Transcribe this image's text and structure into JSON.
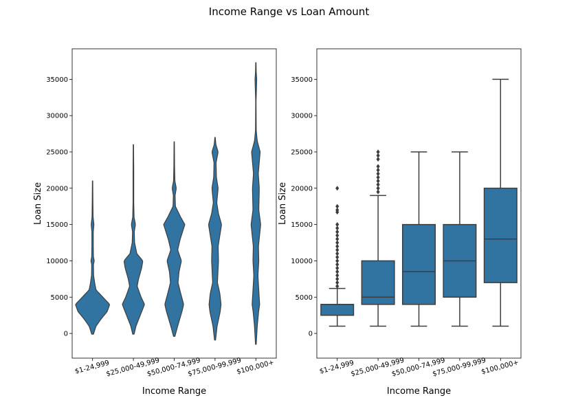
{
  "figure": {
    "title": "Income Range vs Loan Amount"
  },
  "colors": {
    "fill": "#3274a1",
    "edge": "#3d3d3d",
    "axis": "#000000"
  },
  "chart_data": [
    {
      "type": "violin",
      "xlabel": "Income Range",
      "ylabel": "Loan Size",
      "ylim": [
        -3400,
        39200
      ],
      "yticks": [
        0,
        5000,
        10000,
        15000,
        20000,
        25000,
        30000,
        35000
      ],
      "categories": [
        "$1-24,999",
        "$25,000-49,999",
        "$50,000-74,999",
        "$75,000-99,999",
        "$100,000+"
      ],
      "violins": [
        {
          "min": -100,
          "max": 21000,
          "profile": [
            [
              -100,
              0.05
            ],
            [
              1000,
              0.2
            ],
            [
              2000,
              0.5
            ],
            [
              3000,
              0.85
            ],
            [
              4000,
              1.0
            ],
            [
              5000,
              0.6
            ],
            [
              6000,
              0.2
            ],
            [
              7000,
              0.12
            ],
            [
              8000,
              0.06
            ],
            [
              9500,
              0.05
            ],
            [
              10000,
              0.1
            ],
            [
              10500,
              0.05
            ],
            [
              12000,
              0.04
            ],
            [
              14000,
              0.04
            ],
            [
              15000,
              0.08
            ],
            [
              16000,
              0.03
            ],
            [
              18000,
              0.02
            ],
            [
              21000,
              0.01
            ]
          ]
        },
        {
          "min": -100,
          "max": 26000,
          "profile": [
            [
              -100,
              0.04
            ],
            [
              1000,
              0.15
            ],
            [
              2500,
              0.4
            ],
            [
              4000,
              0.65
            ],
            [
              5000,
              0.45
            ],
            [
              6500,
              0.22
            ],
            [
              7500,
              0.3
            ],
            [
              9000,
              0.48
            ],
            [
              10000,
              0.55
            ],
            [
              11000,
              0.2
            ],
            [
              12500,
              0.07
            ],
            [
              14000,
              0.05
            ],
            [
              15000,
              0.12
            ],
            [
              16000,
              0.04
            ],
            [
              18000,
              0.02
            ],
            [
              22000,
              0.02
            ],
            [
              26000,
              0.01
            ]
          ]
        },
        {
          "min": -400,
          "max": 26400,
          "profile": [
            [
              -400,
              0.04
            ],
            [
              1000,
              0.2
            ],
            [
              3000,
              0.45
            ],
            [
              4000,
              0.55
            ],
            [
              5500,
              0.38
            ],
            [
              7000,
              0.22
            ],
            [
              8500,
              0.28
            ],
            [
              10000,
              0.42
            ],
            [
              11500,
              0.2
            ],
            [
              13000,
              0.35
            ],
            [
              15000,
              0.62
            ],
            [
              16000,
              0.38
            ],
            [
              17500,
              0.07
            ],
            [
              19000,
              0.05
            ],
            [
              20000,
              0.12
            ],
            [
              21000,
              0.04
            ],
            [
              23000,
              0.02
            ],
            [
              26400,
              0.01
            ]
          ]
        },
        {
          "min": -900,
          "max": 27000,
          "profile": [
            [
              -900,
              0.03
            ],
            [
              1000,
              0.12
            ],
            [
              3000,
              0.3
            ],
            [
              4000,
              0.35
            ],
            [
              5500,
              0.28
            ],
            [
              7000,
              0.14
            ],
            [
              10000,
              0.2
            ],
            [
              12000,
              0.18
            ],
            [
              15000,
              0.38
            ],
            [
              16500,
              0.2
            ],
            [
              18000,
              0.1
            ],
            [
              20000,
              0.18
            ],
            [
              21500,
              0.08
            ],
            [
              23500,
              0.06
            ],
            [
              25000,
              0.18
            ],
            [
              26000,
              0.05
            ],
            [
              27000,
              0.01
            ]
          ]
        },
        {
          "min": -1500,
          "max": 37300,
          "profile": [
            [
              -1500,
              0.02
            ],
            [
              1000,
              0.08
            ],
            [
              3000,
              0.16
            ],
            [
              4000,
              0.22
            ],
            [
              5500,
              0.18
            ],
            [
              8000,
              0.12
            ],
            [
              10000,
              0.17
            ],
            [
              12000,
              0.15
            ],
            [
              15000,
              0.28
            ],
            [
              17000,
              0.17
            ],
            [
              20000,
              0.2
            ],
            [
              22000,
              0.14
            ],
            [
              25000,
              0.25
            ],
            [
              26500,
              0.08
            ],
            [
              28000,
              0.02
            ],
            [
              32000,
              0.01
            ],
            [
              35000,
              0.05
            ],
            [
              36000,
              0.02
            ],
            [
              37300,
              0.01
            ]
          ]
        }
      ]
    },
    {
      "type": "box",
      "xlabel": "Income Range",
      "ylabel": "Loan Size",
      "ylim": [
        -3400,
        39200
      ],
      "yticks": [
        0,
        5000,
        10000,
        15000,
        20000,
        25000,
        30000,
        35000
      ],
      "categories": [
        "$1-24,999",
        "$25,000-49,999",
        "$50,000-74,999",
        "$75,000-99,999",
        "$100,000+"
      ],
      "boxes": [
        {
          "whisker_low": 1000,
          "q1": 2500,
          "median": 4000,
          "q3": 4000,
          "whisker_high": 6200,
          "outliers": [
            6500,
            7000,
            7500,
            8000,
            8500,
            9000,
            9500,
            10000,
            10500,
            11000,
            11500,
            12000,
            12500,
            13000,
            13500,
            14000,
            14500,
            15000,
            16700,
            17000,
            17500,
            20000
          ]
        },
        {
          "whisker_low": 1000,
          "q1": 4000,
          "median": 5000,
          "q3": 10000,
          "whisker_high": 19000,
          "outliers": [
            19500,
            20000,
            20500,
            21000,
            21500,
            22000,
            22500,
            23000,
            24000,
            24500,
            25000
          ]
        },
        {
          "whisker_low": 1000,
          "q1": 4000,
          "median": 8500,
          "q3": 15000,
          "whisker_high": 25000,
          "outliers": []
        },
        {
          "whisker_low": 1000,
          "q1": 5000,
          "median": 10000,
          "q3": 15000,
          "whisker_high": 25000,
          "outliers": []
        },
        {
          "whisker_low": 1000,
          "q1": 7000,
          "median": 13000,
          "q3": 20000,
          "whisker_high": 35000,
          "outliers": []
        }
      ]
    }
  ]
}
